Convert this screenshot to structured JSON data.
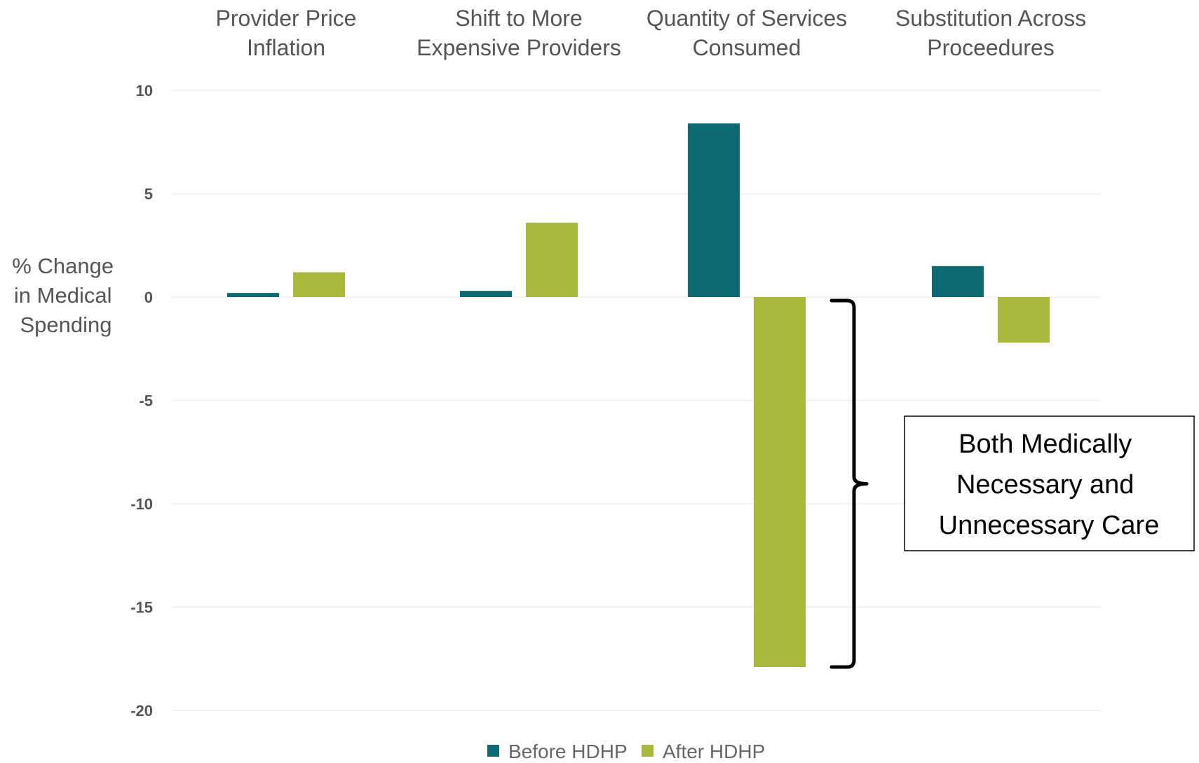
{
  "chart_data": {
    "type": "bar",
    "categories": [
      [
        "Provider Price",
        "Inflation"
      ],
      [
        "Shift to More",
        "Expensive Providers"
      ],
      [
        "Quantity of Services",
        "Consumed"
      ],
      [
        "Substitution Across",
        "Proceedures"
      ]
    ],
    "series": [
      {
        "name": "Before HDHP",
        "color": "#0e6a72",
        "values": [
          0.2,
          0.3,
          8.4,
          1.5
        ]
      },
      {
        "name": "After HDHP",
        "color": "#a8b83a",
        "values": [
          1.2,
          3.6,
          -17.9,
          -2.2
        ]
      }
    ],
    "ylabel": [
      "% Change",
      "in Medical",
      "Spending"
    ],
    "ylim": [
      -20,
      10
    ],
    "yticks": [
      10,
      5,
      0,
      -5,
      -10,
      -15,
      -20
    ],
    "grid": true,
    "legend": "bottom",
    "annotation": {
      "text": [
        "Both Medically",
        "Necessary and",
        "Unnecessary Care"
      ],
      "category": "Quantity of Services Consumed",
      "series": "After HDHP"
    }
  }
}
